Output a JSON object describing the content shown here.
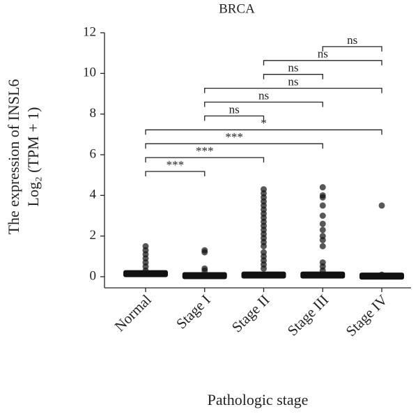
{
  "chart_data": {
    "type": "strip",
    "title": "BRCA",
    "ylabel": [
      "The expression of INSL6",
      "Log₂ (TPM + 1)"
    ],
    "xlabel": "Pathologic stage",
    "categories": [
      "Normal",
      "Stage I",
      "Stage II",
      "Stage III",
      "Stage IV"
    ],
    "medians": [
      0.15,
      0.05,
      0.08,
      0.08,
      0.03
    ],
    "points": [
      [
        0.3,
        0.5,
        0.7,
        0.9,
        1.1,
        1.3,
        1.5
      ],
      [
        0.3,
        0.4,
        1.2,
        1.3
      ],
      [
        0.4,
        0.6,
        0.8,
        1.0,
        1.2,
        1.5,
        1.7,
        1.9,
        2.1,
        2.3,
        2.5,
        2.7,
        2.9,
        3.1,
        3.3,
        3.5,
        3.7,
        3.9,
        4.1,
        4.3
      ],
      [
        0.3,
        0.5,
        0.7,
        1.5,
        1.8,
        2.0,
        2.3,
        2.6,
        3.0,
        3.5,
        3.9,
        4.0,
        4.4
      ],
      [
        0.1,
        3.5
      ]
    ],
    "color": "#111111",
    "ylim": [
      0,
      12
    ],
    "yticks": [
      0,
      2,
      4,
      6,
      8,
      10,
      12
    ],
    "comparisons": [
      {
        "groups": [
          "Normal",
          "Stage I"
        ],
        "label": "***"
      },
      {
        "groups": [
          "Normal",
          "Stage II"
        ],
        "label": "***"
      },
      {
        "groups": [
          "Normal",
          "Stage III"
        ],
        "label": "***"
      },
      {
        "groups": [
          "Normal",
          "Stage IV"
        ],
        "label": "*"
      },
      {
        "groups": [
          "Stage I",
          "Stage II"
        ],
        "label": "ns"
      },
      {
        "groups": [
          "Stage I",
          "Stage III"
        ],
        "label": "ns"
      },
      {
        "groups": [
          "Stage I",
          "Stage IV"
        ],
        "label": "ns"
      },
      {
        "groups": [
          "Stage II",
          "Stage III"
        ],
        "label": "ns"
      },
      {
        "groups": [
          "Stage II",
          "Stage IV"
        ],
        "label": "ns"
      },
      {
        "groups": [
          "Stage III",
          "Stage IV"
        ],
        "label": "ns"
      }
    ]
  }
}
